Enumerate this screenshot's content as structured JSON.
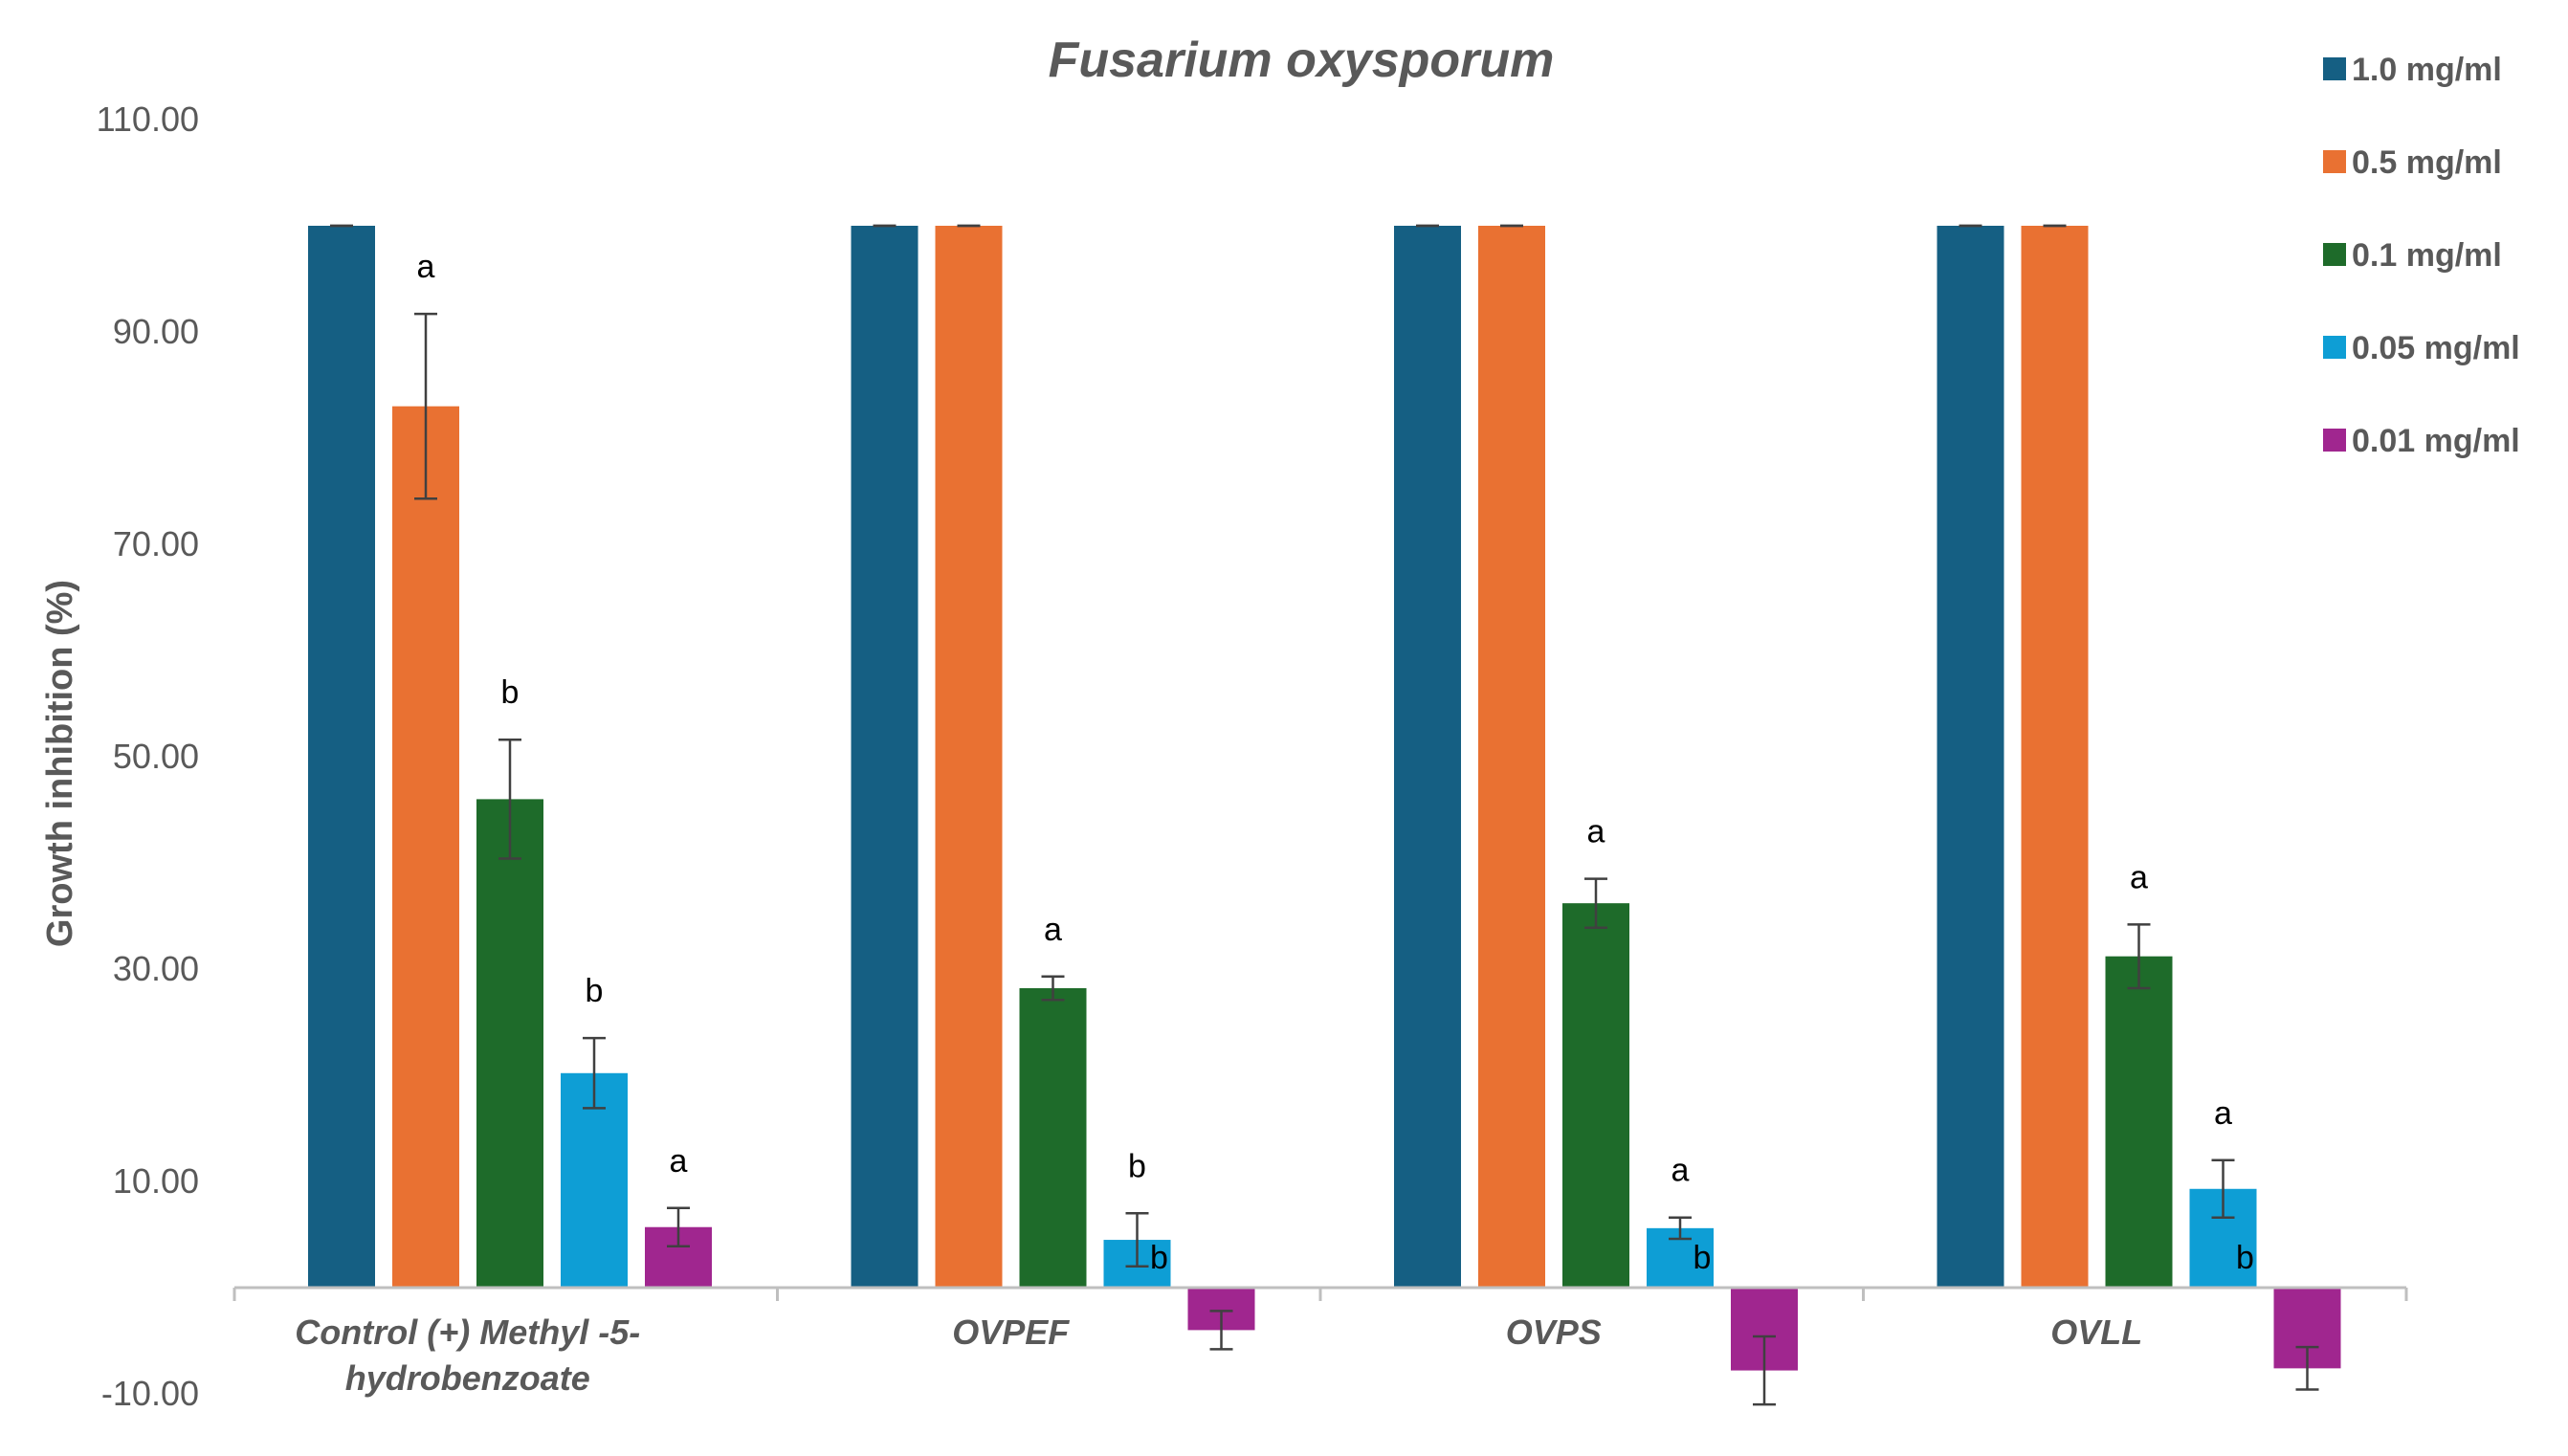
{
  "chart_data": {
    "type": "bar",
    "title": "Fusarium oxysporum",
    "ylabel": "Growth inhibition (%)",
    "xlabel": "",
    "ylim": [
      -10,
      110
    ],
    "yticks": [
      "110.00",
      "90.00",
      "70.00",
      "50.00",
      "30.00",
      "10.00",
      "-10.00"
    ],
    "ytick_values": [
      110,
      90,
      70,
      50,
      30,
      10,
      -10
    ],
    "grid": false,
    "legend_position": "right",
    "categories": [
      [
        "Control (+) Methyl -5-",
        "hydrobenzoate"
      ],
      [
        "OVPEF"
      ],
      [
        "OVPS"
      ],
      [
        "OVLL"
      ]
    ],
    "series": [
      {
        "name": "1.0 mg/ml",
        "color": "#155F83",
        "values": [
          100,
          100,
          100,
          100
        ],
        "errors": [
          0,
          0,
          0,
          0
        ],
        "labels": [
          "",
          "",
          "",
          ""
        ]
      },
      {
        "name": "0.5 mg/ml",
        "color": "#E97132",
        "values": [
          83,
          100,
          100,
          100
        ],
        "errors": [
          8.7,
          0,
          0,
          0
        ],
        "labels": [
          "a",
          "",
          "",
          ""
        ]
      },
      {
        "name": "0.1 mg/ml",
        "color": "#1E6B2A",
        "values": [
          46,
          28.2,
          36.2,
          31.2
        ],
        "errors": [
          5.6,
          1.1,
          2.3,
          3.0
        ],
        "labels": [
          "b",
          "a",
          "a",
          "a"
        ]
      },
      {
        "name": "0.05 mg/ml",
        "color": "#0E9ED5",
        "values": [
          20.2,
          4.5,
          5.6,
          9.3
        ],
        "errors": [
          3.3,
          2.5,
          1.0,
          2.7
        ],
        "labels": [
          "b",
          "b",
          "a",
          "a"
        ]
      },
      {
        "name": "0.01 mg/ml",
        "color": "#A0268F",
        "values": [
          5.7,
          -4,
          -7.8,
          -7.6
        ],
        "errors": [
          1.8,
          1.8,
          3.2,
          2.0
        ],
        "labels": [
          "a",
          "b",
          "b",
          "b"
        ]
      }
    ]
  }
}
